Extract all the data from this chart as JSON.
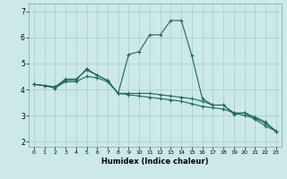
{
  "title": "",
  "xlabel": "Humidex (Indice chaleur)",
  "background_color": "#cce8e8",
  "grid_color": "#aacccc",
  "line_color": "#1a6b5a",
  "xlim": [
    -0.5,
    23.5
  ],
  "ylim": [
    1.8,
    7.3
  ],
  "xticks": [
    0,
    1,
    2,
    3,
    4,
    5,
    6,
    7,
    8,
    9,
    10,
    11,
    12,
    13,
    14,
    15,
    16,
    17,
    18,
    19,
    20,
    21,
    22,
    23
  ],
  "yticks": [
    2,
    3,
    4,
    5,
    6,
    7
  ],
  "line1_x": [
    0,
    1,
    2,
    3,
    4,
    5,
    6,
    7,
    8,
    9,
    10,
    11,
    12,
    13,
    14,
    15,
    16,
    17,
    18,
    19,
    20,
    21,
    22,
    23
  ],
  "line1_y": [
    4.2,
    4.15,
    4.1,
    4.4,
    4.4,
    4.75,
    4.55,
    4.35,
    3.85,
    5.35,
    5.45,
    6.1,
    6.1,
    6.65,
    6.65,
    5.3,
    3.65,
    3.4,
    3.4,
    3.05,
    3.1,
    2.85,
    2.6,
    2.4
  ],
  "line2_x": [
    0,
    1,
    2,
    3,
    4,
    5,
    6,
    7,
    8,
    9,
    10,
    11,
    12,
    13,
    14,
    15,
    16,
    17,
    18,
    19,
    20,
    21,
    22,
    23
  ],
  "line2_y": [
    4.2,
    4.15,
    4.1,
    4.35,
    4.35,
    4.8,
    4.55,
    4.35,
    3.85,
    3.85,
    3.85,
    3.85,
    3.8,
    3.75,
    3.7,
    3.65,
    3.55,
    3.4,
    3.4,
    3.1,
    3.1,
    2.95,
    2.75,
    2.4
  ],
  "line3_x": [
    0,
    1,
    2,
    3,
    4,
    5,
    6,
    7,
    8,
    9,
    10,
    11,
    12,
    13,
    14,
    15,
    16,
    17,
    18,
    19,
    20,
    21,
    22,
    23
  ],
  "line3_y": [
    4.2,
    4.15,
    4.05,
    4.3,
    4.3,
    4.5,
    4.45,
    4.3,
    3.85,
    3.8,
    3.75,
    3.7,
    3.65,
    3.6,
    3.55,
    3.45,
    3.35,
    3.3,
    3.25,
    3.1,
    3.0,
    2.9,
    2.7,
    2.4
  ],
  "lw": 0.8,
  "ms": 2.5,
  "xlabel_fontsize": 6.0,
  "xtick_fontsize": 4.5,
  "ytick_fontsize": 5.5
}
